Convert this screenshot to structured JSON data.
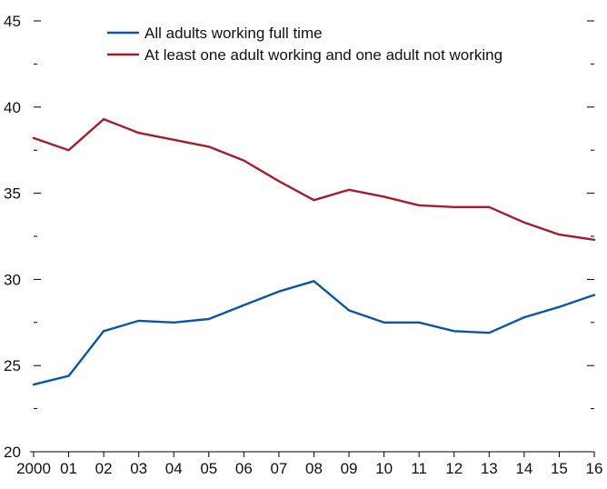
{
  "chart_data": {
    "type": "line",
    "title": "",
    "xlabel": "",
    "ylabel": "",
    "categories": [
      "2000",
      "01",
      "02",
      "03",
      "04",
      "05",
      "06",
      "07",
      "08",
      "09",
      "10",
      "11",
      "12",
      "13",
      "14",
      "15",
      "16"
    ],
    "ylim": [
      20,
      45
    ],
    "y_major_ticks": [
      20,
      25,
      30,
      35,
      40,
      45
    ],
    "y_minor_ticks": [
      22.5,
      27.5,
      32.5,
      37.5,
      42.5
    ],
    "grid": false,
    "legend_position": "top-center",
    "series": [
      {
        "name": "All adults working full time",
        "color": "#0b57a4",
        "values": [
          23.9,
          24.4,
          27.0,
          27.6,
          27.5,
          27.7,
          28.5,
          29.3,
          29.9,
          28.2,
          27.5,
          27.5,
          27.0,
          26.9,
          27.8,
          28.4,
          29.1
        ]
      },
      {
        "name": "At least one adult working and one adult not working",
        "color": "#a51d2d",
        "values": [
          38.2,
          37.5,
          39.3,
          38.5,
          38.1,
          37.7,
          36.9,
          35.7,
          34.6,
          35.2,
          34.8,
          34.3,
          34.2,
          34.2,
          33.3,
          32.6,
          32.3
        ]
      }
    ]
  }
}
